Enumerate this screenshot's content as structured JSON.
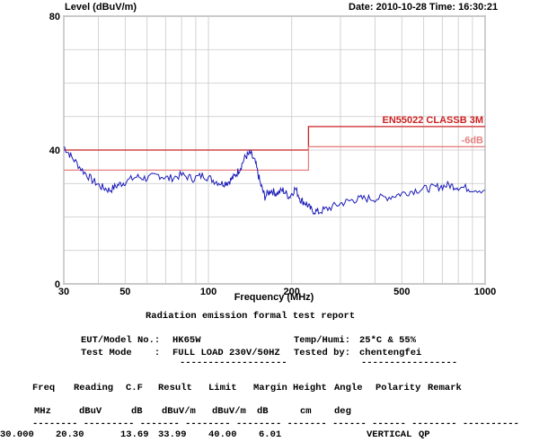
{
  "header": {
    "ylabel": "Level (dBuV/m)",
    "date_label": "Date:",
    "date": "2010-10-28",
    "time_label": "Time:",
    "time": "16:30:21"
  },
  "chart_data": {
    "type": "line",
    "xlabel": "Frequency (MHz)",
    "ylabel": "Level (dBuV/m)",
    "x_scale": "log",
    "xlim": [
      30,
      1000
    ],
    "ylim": [
      0,
      80
    ],
    "x_ticks": [
      "30",
      "50",
      "100",
      "200",
      "500",
      "1000"
    ],
    "x_tick_values": [
      30,
      50,
      100,
      200,
      500,
      1000
    ],
    "y_ticks": [
      "0",
      "40",
      "80"
    ],
    "y_tick_values": [
      0,
      40,
      80
    ],
    "grid": true,
    "colors": {
      "trace": "#1b1bb8",
      "limit": "#cc2222",
      "limit_minus_6": "#e88080",
      "grid": "#c8c8c8"
    },
    "limits": [
      {
        "name": "EN55022 CLASSB 3M",
        "points": [
          [
            30,
            40
          ],
          [
            230,
            40
          ],
          [
            230,
            47
          ],
          [
            1000,
            47
          ]
        ]
      },
      {
        "name": "-6dB",
        "points": [
          [
            30,
            34
          ],
          [
            230,
            34
          ],
          [
            230,
            41
          ],
          [
            1000,
            41
          ]
        ]
      }
    ],
    "series": [
      {
        "values": [
          [
            30,
            41
          ],
          [
            32,
            38
          ],
          [
            35,
            34
          ],
          [
            38,
            31
          ],
          [
            41,
            29
          ],
          [
            44,
            28
          ],
          [
            47,
            29.5
          ],
          [
            50,
            30.5
          ],
          [
            55,
            32
          ],
          [
            60,
            31.5
          ],
          [
            66,
            32.5
          ],
          [
            72,
            31.5
          ],
          [
            80,
            32.5
          ],
          [
            88,
            31.5
          ],
          [
            96,
            32.5
          ],
          [
            104,
            31
          ],
          [
            112,
            30
          ],
          [
            118,
            30.5
          ],
          [
            124,
            32
          ],
          [
            130,
            34.5
          ],
          [
            136,
            38
          ],
          [
            142,
            39
          ],
          [
            148,
            36
          ],
          [
            154,
            30
          ],
          [
            160,
            26
          ],
          [
            168,
            28
          ],
          [
            176,
            27
          ],
          [
            186,
            28
          ],
          [
            196,
            26
          ],
          [
            206,
            28.5
          ],
          [
            216,
            25
          ],
          [
            226,
            24
          ],
          [
            236,
            22
          ],
          [
            250,
            21.5
          ],
          [
            270,
            22.5
          ],
          [
            300,
            24
          ],
          [
            330,
            25
          ],
          [
            360,
            25.5
          ],
          [
            400,
            25.5
          ],
          [
            450,
            26
          ],
          [
            500,
            27
          ],
          [
            560,
            28
          ],
          [
            620,
            28.5
          ],
          [
            680,
            29
          ],
          [
            740,
            29.5
          ],
          [
            800,
            29
          ],
          [
            880,
            28.5
          ],
          [
            1000,
            28
          ]
        ]
      }
    ]
  },
  "report": {
    "title": "Radiation emission formal test report",
    "eut_label": "EUT/Model No.:",
    "eut_value": "HK65W",
    "mode_label": "Test Mode    :",
    "mode_value": "FULL LOAD 230V/50HZ",
    "temp_label": "Temp/Humi:",
    "temp_value": "25*C & 55%",
    "tested_label": "Tested by:",
    "tested_value": "chentengfei",
    "underline_left": "-------------------",
    "underline_right": "-----------------",
    "columns": [
      "Freq",
      "Reading",
      "C.F",
      "Result",
      "Limit",
      "Margin",
      "Height",
      "Angle",
      "Polarity",
      "Remark"
    ],
    "units": [
      "MHz",
      "dBuV",
      "dB",
      "dBuV/m",
      "dBuV/m",
      "dB",
      "cm",
      "deg"
    ],
    "dash_row": "-------- --------- ------- -------- -------- ------- ------ ------ -------- ----------",
    "rows": [
      [
        "30.000",
        "20.30",
        "13.69",
        "33.99",
        "40.00",
        "6.01",
        "",
        "",
        "VERTICAL",
        "QP"
      ]
    ]
  }
}
